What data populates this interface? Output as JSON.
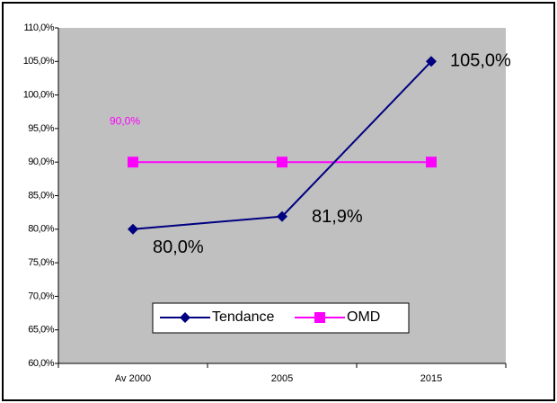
{
  "chart_data": {
    "type": "line",
    "categories": [
      "Av 2000",
      "2005",
      "2015"
    ],
    "series": [
      {
        "name": "Tendance",
        "color": "#000080",
        "marker": "diamond",
        "values": [
          80.0,
          81.9,
          105.0
        ],
        "value_labels": [
          "80,0%",
          "81,9%",
          "105,0%"
        ]
      },
      {
        "name": "OMD",
        "color": "#ff00ff",
        "marker": "square",
        "values": [
          90.0,
          90.0,
          90.0
        ],
        "value_labels": [
          "90,0%",
          null,
          null
        ]
      }
    ],
    "ylim": [
      60,
      110
    ],
    "yticks": [
      {
        "value": 60,
        "label": "60,0%"
      },
      {
        "value": 65,
        "label": "65,0%"
      },
      {
        "value": 70,
        "label": "70,0%"
      },
      {
        "value": 75,
        "label": "75,0%"
      },
      {
        "value": 80,
        "label": "80,0%"
      },
      {
        "value": 85,
        "label": "85,0%"
      },
      {
        "value": 90,
        "label": "90,0%"
      },
      {
        "value": 95,
        "label": "95,0%"
      },
      {
        "value": 100,
        "label": "100,0%"
      },
      {
        "value": 105,
        "label": "105,0%"
      },
      {
        "value": 110,
        "label": "110,0%"
      }
    ],
    "grid": false,
    "legend": "bottom"
  }
}
